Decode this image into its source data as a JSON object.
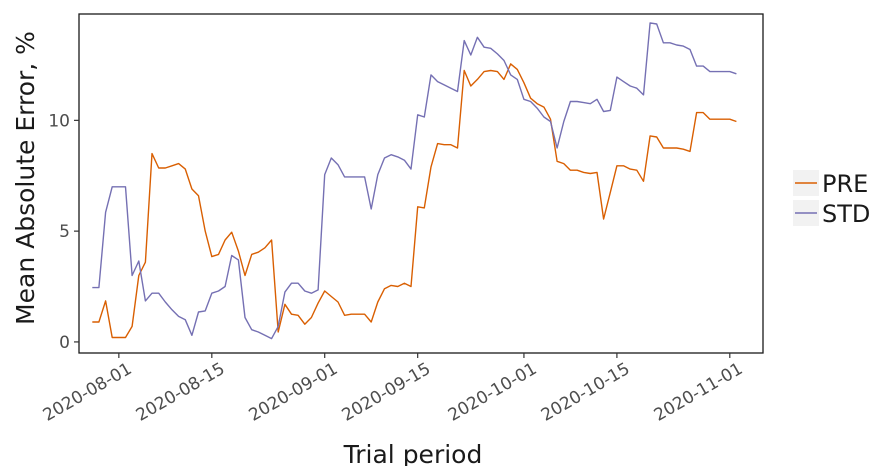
{
  "chart_data": {
    "type": "line",
    "title": "",
    "xlabel": "Trial period",
    "ylabel": "Mean Absolute Error, %",
    "x_ticks": [
      "2020-08-01",
      "2020-08-15",
      "2020-09-01",
      "2020-09-15",
      "2020-10-01",
      "2020-10-15",
      "2020-11-01"
    ],
    "y_ticks": [
      0,
      5,
      10
    ],
    "xlim": [
      "2020-07-26",
      "2020-11-06"
    ],
    "ylim": [
      -0.5,
      14.8
    ],
    "grid": false,
    "legend_position": "right",
    "series": [
      {
        "name": "PRE",
        "color": "#d95f02",
        "points": [
          [
            "2020-07-28",
            0.9
          ],
          [
            "2020-07-29",
            0.9
          ],
          [
            "2020-07-30",
            1.85
          ],
          [
            "2020-07-31",
            0.2
          ],
          [
            "2020-08-01",
            0.2
          ],
          [
            "2020-08-02",
            0.2
          ],
          [
            "2020-08-03",
            0.7
          ],
          [
            "2020-08-04",
            3.0
          ],
          [
            "2020-08-05",
            3.6
          ],
          [
            "2020-08-06",
            8.5
          ],
          [
            "2020-08-07",
            7.85
          ],
          [
            "2020-08-08",
            7.85
          ],
          [
            "2020-08-09",
            7.95
          ],
          [
            "2020-08-10",
            8.05
          ],
          [
            "2020-08-11",
            7.8
          ],
          [
            "2020-08-12",
            6.9
          ],
          [
            "2020-08-13",
            6.6
          ],
          [
            "2020-08-14",
            5.0
          ],
          [
            "2020-08-15",
            3.85
          ],
          [
            "2020-08-16",
            3.95
          ],
          [
            "2020-08-17",
            4.6
          ],
          [
            "2020-08-18",
            4.95
          ],
          [
            "2020-08-19",
            4.1
          ],
          [
            "2020-08-20",
            3.0
          ],
          [
            "2020-08-21",
            3.95
          ],
          [
            "2020-08-22",
            4.05
          ],
          [
            "2020-08-23",
            4.25
          ],
          [
            "2020-08-24",
            4.6
          ],
          [
            "2020-08-25",
            0.45
          ],
          [
            "2020-08-26",
            1.7
          ],
          [
            "2020-08-27",
            1.25
          ],
          [
            "2020-08-28",
            1.2
          ],
          [
            "2020-08-29",
            0.8
          ],
          [
            "2020-08-30",
            1.1
          ],
          [
            "2020-08-31",
            1.75
          ],
          [
            "2020-09-01",
            2.3
          ],
          [
            "2020-09-02",
            2.05
          ],
          [
            "2020-09-03",
            1.8
          ],
          [
            "2020-09-04",
            1.2
          ],
          [
            "2020-09-05",
            1.25
          ],
          [
            "2020-09-06",
            1.25
          ],
          [
            "2020-09-07",
            1.25
          ],
          [
            "2020-09-08",
            0.9
          ],
          [
            "2020-09-09",
            1.8
          ],
          [
            "2020-09-10",
            2.4
          ],
          [
            "2020-09-11",
            2.55
          ],
          [
            "2020-09-12",
            2.5
          ],
          [
            "2020-09-13",
            2.65
          ],
          [
            "2020-09-14",
            2.5
          ],
          [
            "2020-09-15",
            6.1
          ],
          [
            "2020-09-16",
            6.05
          ],
          [
            "2020-09-17",
            7.9
          ],
          [
            "2020-09-18",
            8.95
          ],
          [
            "2020-09-19",
            8.9
          ],
          [
            "2020-09-20",
            8.9
          ],
          [
            "2020-09-21",
            8.75
          ],
          [
            "2020-09-22",
            12.25
          ],
          [
            "2020-09-23",
            11.55
          ],
          [
            "2020-09-24",
            11.85
          ],
          [
            "2020-09-25",
            12.2
          ],
          [
            "2020-09-26",
            12.25
          ],
          [
            "2020-09-27",
            12.2
          ],
          [
            "2020-09-28",
            11.85
          ],
          [
            "2020-09-29",
            12.55
          ],
          [
            "2020-09-30",
            12.3
          ],
          [
            "2020-10-01",
            11.7
          ],
          [
            "2020-10-02",
            11.0
          ],
          [
            "2020-10-03",
            10.75
          ],
          [
            "2020-10-04",
            10.6
          ],
          [
            "2020-10-05",
            10.05
          ],
          [
            "2020-10-06",
            8.15
          ],
          [
            "2020-10-07",
            8.05
          ],
          [
            "2020-10-08",
            7.75
          ],
          [
            "2020-10-09",
            7.75
          ],
          [
            "2020-10-10",
            7.65
          ],
          [
            "2020-10-11",
            7.6
          ],
          [
            "2020-10-12",
            7.65
          ],
          [
            "2020-10-13",
            5.55
          ],
          [
            "2020-10-14",
            6.75
          ],
          [
            "2020-10-15",
            7.95
          ],
          [
            "2020-10-16",
            7.95
          ],
          [
            "2020-10-17",
            7.8
          ],
          [
            "2020-10-18",
            7.75
          ],
          [
            "2020-10-19",
            7.25
          ],
          [
            "2020-10-20",
            9.3
          ],
          [
            "2020-10-21",
            9.25
          ],
          [
            "2020-10-22",
            8.75
          ],
          [
            "2020-10-23",
            8.75
          ],
          [
            "2020-10-24",
            8.75
          ],
          [
            "2020-10-25",
            8.7
          ],
          [
            "2020-10-26",
            8.6
          ],
          [
            "2020-10-27",
            10.35
          ],
          [
            "2020-10-28",
            10.35
          ],
          [
            "2020-10-29",
            10.05
          ],
          [
            "2020-10-30",
            10.05
          ],
          [
            "2020-10-31",
            10.05
          ],
          [
            "2020-11-01",
            10.05
          ],
          [
            "2020-11-02",
            9.95
          ]
        ]
      },
      {
        "name": "STD",
        "color": "#7570b3",
        "points": [
          [
            "2020-07-28",
            2.45
          ],
          [
            "2020-07-29",
            2.45
          ],
          [
            "2020-07-30",
            5.85
          ],
          [
            "2020-07-31",
            7.0
          ],
          [
            "2020-08-01",
            7.0
          ],
          [
            "2020-08-02",
            7.0
          ],
          [
            "2020-08-03",
            3.0
          ],
          [
            "2020-08-04",
            3.65
          ],
          [
            "2020-08-05",
            1.85
          ],
          [
            "2020-08-06",
            2.2
          ],
          [
            "2020-08-07",
            2.2
          ],
          [
            "2020-08-08",
            1.8
          ],
          [
            "2020-08-09",
            1.45
          ],
          [
            "2020-08-10",
            1.15
          ],
          [
            "2020-08-11",
            1.0
          ],
          [
            "2020-08-12",
            0.3
          ],
          [
            "2020-08-13",
            1.35
          ],
          [
            "2020-08-14",
            1.4
          ],
          [
            "2020-08-15",
            2.2
          ],
          [
            "2020-08-16",
            2.3
          ],
          [
            "2020-08-17",
            2.5
          ],
          [
            "2020-08-18",
            3.9
          ],
          [
            "2020-08-19",
            3.7
          ],
          [
            "2020-08-20",
            1.1
          ],
          [
            "2020-08-21",
            0.55
          ],
          [
            "2020-08-22",
            0.45
          ],
          [
            "2020-08-23",
            0.3
          ],
          [
            "2020-08-24",
            0.15
          ],
          [
            "2020-08-25",
            0.7
          ],
          [
            "2020-08-26",
            2.25
          ],
          [
            "2020-08-27",
            2.65
          ],
          [
            "2020-08-28",
            2.65
          ],
          [
            "2020-08-29",
            2.3
          ],
          [
            "2020-08-30",
            2.2
          ],
          [
            "2020-08-31",
            2.35
          ],
          [
            "2020-09-01",
            7.55
          ],
          [
            "2020-09-02",
            8.3
          ],
          [
            "2020-09-03",
            8.0
          ],
          [
            "2020-09-04",
            7.45
          ],
          [
            "2020-09-05",
            7.45
          ],
          [
            "2020-09-06",
            7.45
          ],
          [
            "2020-09-07",
            7.45
          ],
          [
            "2020-09-08",
            6.0
          ],
          [
            "2020-09-09",
            7.55
          ],
          [
            "2020-09-10",
            8.3
          ],
          [
            "2020-09-11",
            8.45
          ],
          [
            "2020-09-12",
            8.35
          ],
          [
            "2020-09-13",
            8.2
          ],
          [
            "2020-09-14",
            7.8
          ],
          [
            "2020-09-15",
            10.25
          ],
          [
            "2020-09-16",
            10.15
          ],
          [
            "2020-09-17",
            12.05
          ],
          [
            "2020-09-18",
            11.75
          ],
          [
            "2020-09-19",
            11.6
          ],
          [
            "2020-09-20",
            11.45
          ],
          [
            "2020-09-21",
            11.3
          ],
          [
            "2020-09-22",
            13.6
          ],
          [
            "2020-09-23",
            12.95
          ],
          [
            "2020-09-24",
            13.75
          ],
          [
            "2020-09-25",
            13.3
          ],
          [
            "2020-09-26",
            13.25
          ],
          [
            "2020-09-27",
            13.0
          ],
          [
            "2020-09-28",
            12.7
          ],
          [
            "2020-09-29",
            12.05
          ],
          [
            "2020-09-30",
            11.85
          ],
          [
            "2020-10-01",
            10.95
          ],
          [
            "2020-10-02",
            10.85
          ],
          [
            "2020-10-03",
            10.55
          ],
          [
            "2020-10-04",
            10.15
          ],
          [
            "2020-10-05",
            9.95
          ],
          [
            "2020-10-06",
            8.75
          ],
          [
            "2020-10-07",
            9.95
          ],
          [
            "2020-10-08",
            10.85
          ],
          [
            "2020-10-09",
            10.85
          ],
          [
            "2020-10-10",
            10.8
          ],
          [
            "2020-10-11",
            10.75
          ],
          [
            "2020-10-12",
            10.95
          ],
          [
            "2020-10-13",
            10.4
          ],
          [
            "2020-10-14",
            10.45
          ],
          [
            "2020-10-15",
            11.95
          ],
          [
            "2020-10-16",
            11.75
          ],
          [
            "2020-10-17",
            11.55
          ],
          [
            "2020-10-18",
            11.45
          ],
          [
            "2020-10-19",
            11.15
          ],
          [
            "2020-10-20",
            14.4
          ],
          [
            "2020-10-21",
            14.35
          ],
          [
            "2020-10-22",
            13.5
          ],
          [
            "2020-10-23",
            13.5
          ],
          [
            "2020-10-24",
            13.4
          ],
          [
            "2020-10-25",
            13.35
          ],
          [
            "2020-10-26",
            13.2
          ],
          [
            "2020-10-27",
            12.45
          ],
          [
            "2020-10-28",
            12.45
          ],
          [
            "2020-10-29",
            12.2
          ],
          [
            "2020-10-30",
            12.2
          ],
          [
            "2020-10-31",
            12.2
          ],
          [
            "2020-11-01",
            12.2
          ],
          [
            "2020-11-02",
            12.1
          ]
        ]
      }
    ]
  }
}
